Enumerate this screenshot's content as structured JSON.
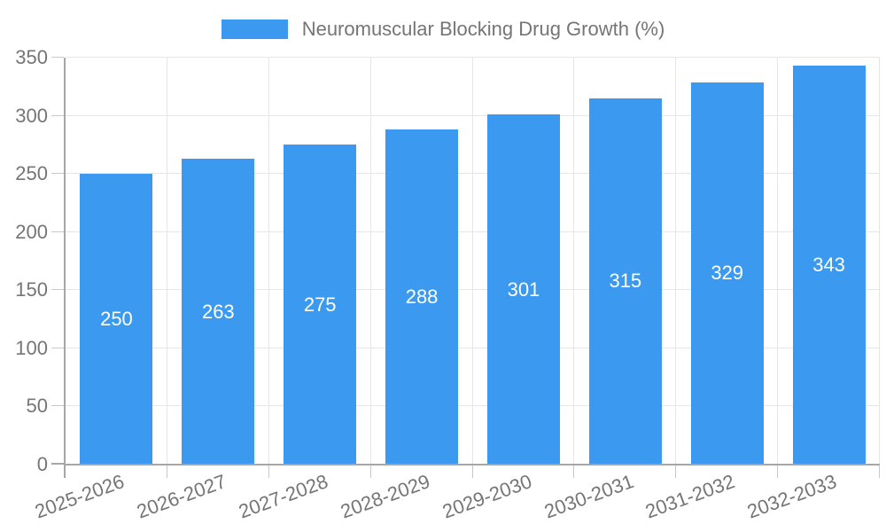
{
  "chart_data": {
    "type": "bar",
    "title": "",
    "categories": [
      "2025-2026",
      "2026-2027",
      "2027-2028",
      "2028-2029",
      "2029-2030",
      "2030-2031",
      "2031-2032",
      "2032-2033"
    ],
    "series": [
      {
        "name": "Neuromuscular Blocking Drug Growth (%)",
        "values": [
          250,
          263,
          275,
          288,
          301,
          315,
          329,
          343
        ]
      }
    ],
    "xlabel": "",
    "ylabel": "",
    "ylim": [
      0,
      350
    ],
    "yticks": [
      0,
      50,
      100,
      150,
      200,
      250,
      300,
      350
    ],
    "grid": true,
    "legend_position": "top",
    "bar_value_labels": true,
    "x_label_rotation_deg": -20,
    "colors": {
      "bar": "#3B9AF0",
      "axis": "#A6A6A6",
      "grid": "#E6E6E6",
      "tick_stub": "#C9C9C9",
      "tick_text": "#757575",
      "value_label": "#FFFFFF",
      "legend_text": "#757575",
      "background": "#FFFFFF"
    }
  }
}
